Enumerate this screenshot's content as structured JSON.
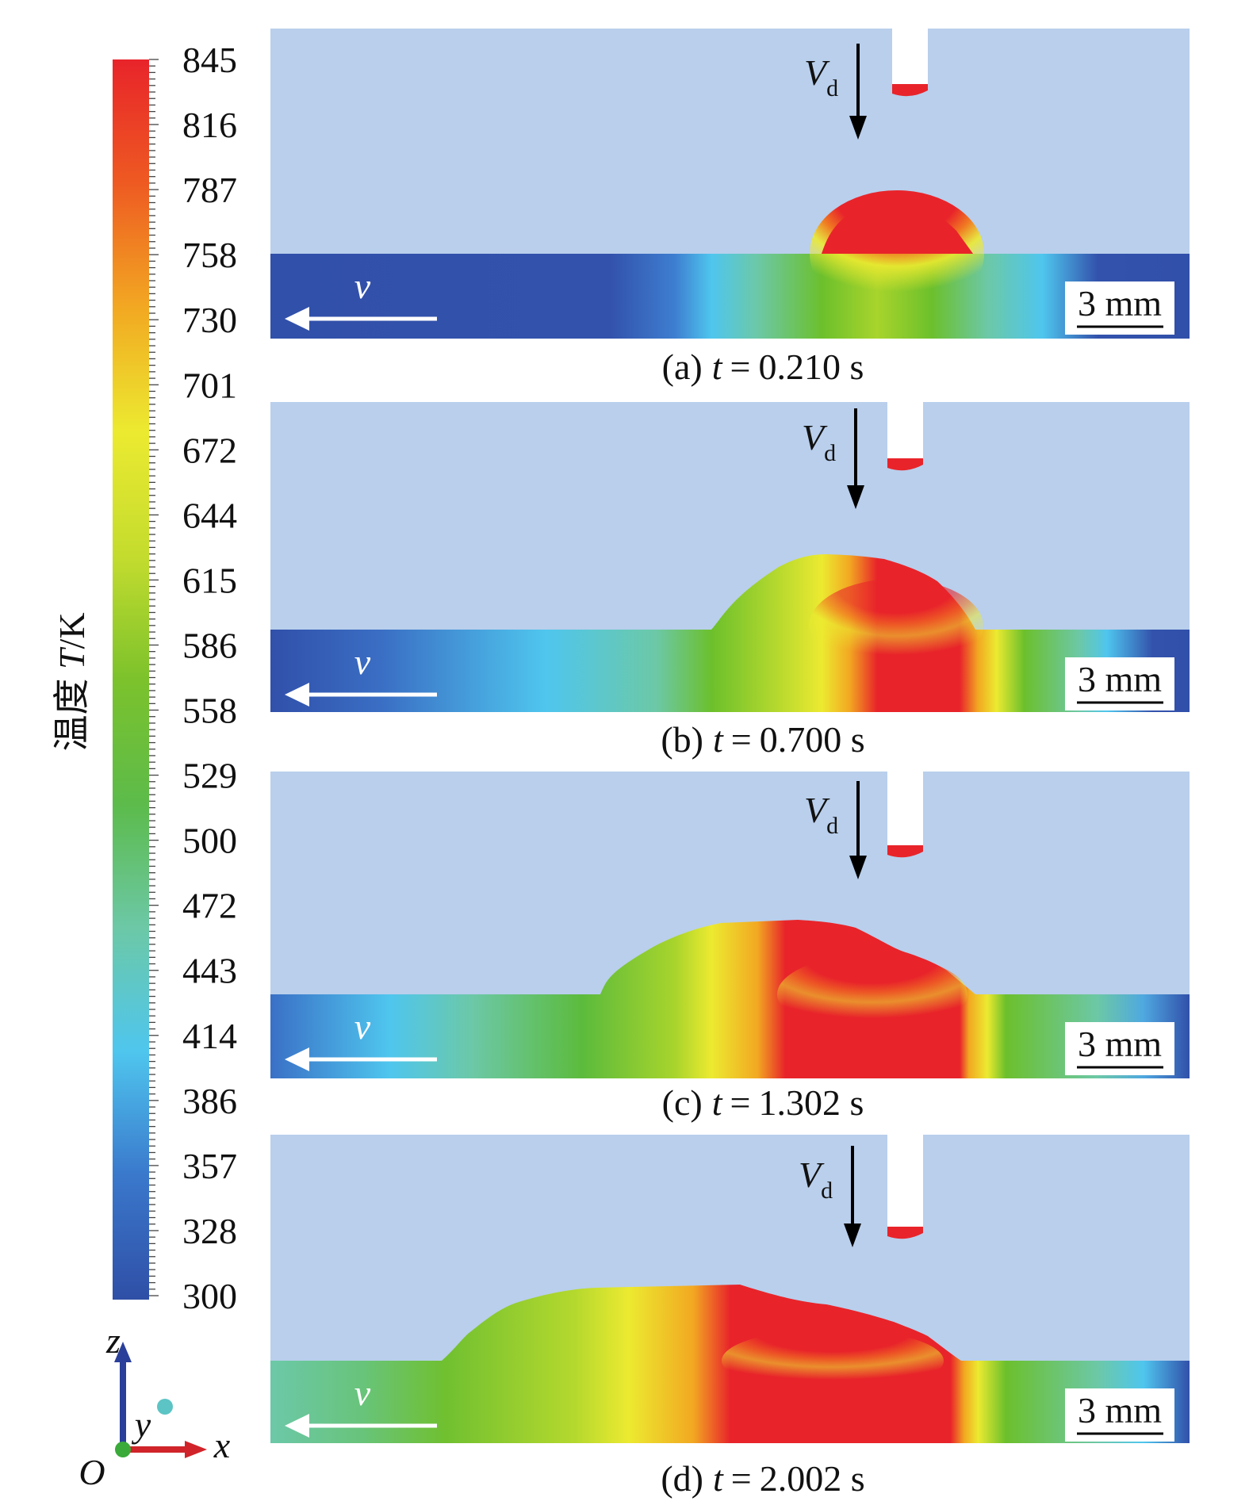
{
  "chart_data": {
    "type": "heatmap",
    "title": "",
    "colorbar": {
      "label_cn": "温度",
      "label_var": "T",
      "label_unit": "/K",
      "min": 300,
      "max": 845,
      "ticks": [
        "845",
        "816",
        "787",
        "758",
        "730",
        "701",
        "672",
        "644",
        "615",
        "586",
        "558",
        "529",
        "500",
        "472",
        "443",
        "414",
        "386",
        "357",
        "328",
        "300"
      ],
      "colors": [
        "#2f4fa6",
        "#3a78cc",
        "#4fc6ee",
        "#6cc8a6",
        "#5cbb4a",
        "#7cc22c",
        "#c4dc2e",
        "#ecea30",
        "#f2a822",
        "#ee5a22",
        "#e8242a"
      ]
    },
    "panels": [
      {
        "label": "(a)",
        "t_var": "t",
        "equals": "=",
        "time": "0.210 s",
        "deposit_max_temp": 845
      },
      {
        "label": "(b)",
        "t_var": "t",
        "equals": "=",
        "time": "0.700 s",
        "deposit_max_temp": 845
      },
      {
        "label": "(c)",
        "t_var": "t",
        "equals": "=",
        "time": "1.302 s",
        "deposit_max_temp": 845
      },
      {
        "label": "(d)",
        "t_var": "t",
        "equals": "=",
        "time": "2.002 s",
        "deposit_max_temp": 845
      }
    ],
    "annotations": {
      "deposition_velocity": "V",
      "deposition_velocity_sub": "d",
      "substrate_velocity": "v",
      "scale_bar": "3 mm"
    },
    "axes_triad": {
      "origin": "O",
      "x": "x",
      "y": "y",
      "z": "z"
    }
  }
}
